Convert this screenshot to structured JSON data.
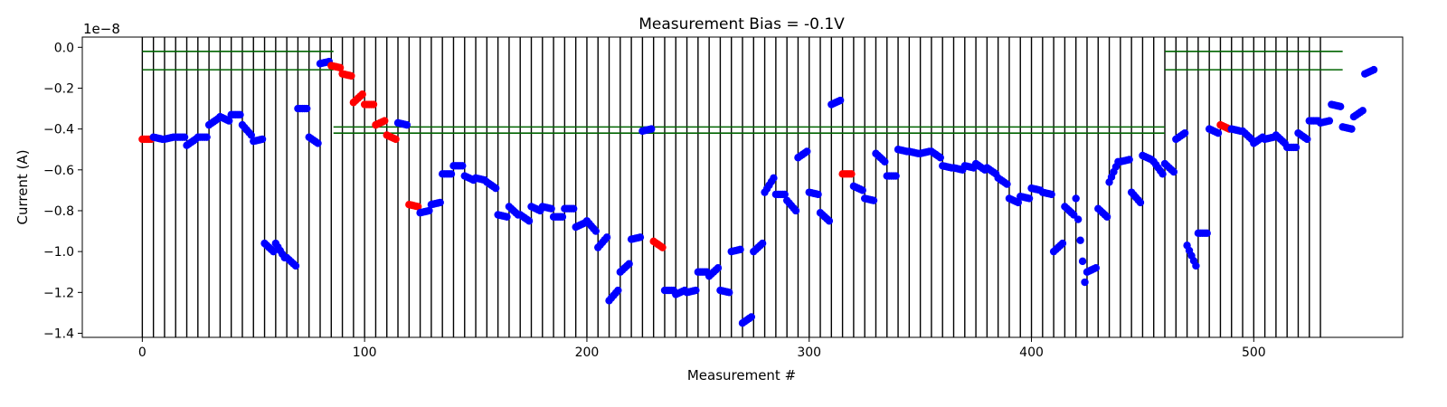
{
  "chart_data": {
    "type": "scatter",
    "title": "Measurement Bias = -0.1V",
    "xlabel": "Measurement #",
    "ylabel": "Current (A)",
    "y_scale_label": "1e−8",
    "xlim": [
      -27,
      567
    ],
    "ylim": [
      -1.42,
      0.05
    ],
    "x_ticks": [
      0,
      100,
      200,
      300,
      400,
      500
    ],
    "x_tick_labels": [
      "0",
      "100",
      "200",
      "300",
      "400",
      "500"
    ],
    "y_ticks": [
      -1.4,
      -1.2,
      -1.0,
      -0.8,
      -0.6,
      -0.4,
      -0.2,
      0.0
    ],
    "y_tick_labels": [
      "−1.4",
      "−1.2",
      "−1.0",
      "−0.8",
      "−0.6",
      "−0.4",
      "−0.2",
      "0.0"
    ],
    "grid": false,
    "colors": {
      "normal": "#0000ff",
      "flagged": "#ff0000",
      "limit_line": "#006400",
      "separator": "#000000"
    },
    "vertical_separators": {
      "color": "black",
      "y_from": -1.42,
      "y_to": 0.05,
      "x": [
        0,
        5,
        10,
        15,
        20,
        25,
        30,
        35,
        40,
        45,
        50,
        55,
        60,
        65,
        70,
        75,
        80,
        85,
        90,
        95,
        100,
        105,
        110,
        115,
        120,
        125,
        130,
        135,
        140,
        145,
        150,
        155,
        160,
        165,
        170,
        175,
        180,
        185,
        190,
        195,
        200,
        205,
        210,
        215,
        220,
        225,
        230,
        235,
        240,
        245,
        250,
        255,
        260,
        265,
        270,
        275,
        280,
        285,
        290,
        295,
        300,
        305,
        310,
        315,
        320,
        325,
        330,
        335,
        340,
        345,
        350,
        355,
        360,
        365,
        370,
        375,
        380,
        385,
        390,
        395,
        400,
        405,
        410,
        415,
        420,
        425,
        430,
        435,
        440,
        445,
        450,
        455,
        460,
        465,
        470,
        475,
        480,
        485,
        490,
        495,
        500,
        505,
        510,
        515,
        520,
        525,
        530
      ]
    },
    "horizontal_lines": [
      {
        "y": -0.02,
        "x_from": 0,
        "x_to": 86
      },
      {
        "y": -0.11,
        "x_from": 0,
        "x_to": 86
      },
      {
        "y": -0.39,
        "x_from": 86,
        "x_to": 460
      },
      {
        "y": -0.42,
        "x_from": 86,
        "x_to": 460
      },
      {
        "y": -0.02,
        "x_from": 460,
        "x_to": 540
      },
      {
        "y": -0.11,
        "x_from": 460,
        "x_to": 540
      }
    ],
    "series": [
      {
        "segments": [
          [
            0,
            -0.45,
            -0.45,
            1
          ],
          [
            5,
            -0.44,
            -0.45,
            0
          ],
          [
            10,
            -0.45,
            -0.44,
            0
          ],
          [
            15,
            -0.44,
            -0.44,
            0
          ],
          [
            20,
            -0.48,
            -0.45,
            0
          ],
          [
            25,
            -0.44,
            -0.44,
            0
          ],
          [
            30,
            -0.38,
            -0.35,
            0
          ],
          [
            35,
            -0.34,
            -0.36,
            0
          ],
          [
            40,
            -0.33,
            -0.33,
            0
          ],
          [
            45,
            -0.38,
            -0.43,
            0
          ],
          [
            50,
            -0.46,
            -0.45,
            0
          ],
          [
            55,
            -0.96,
            -1.0,
            0
          ],
          [
            60,
            -0.96,
            -1.03,
            0
          ],
          [
            65,
            -1.03,
            -1.07,
            0
          ],
          [
            70,
            -0.3,
            -0.3,
            0
          ],
          [
            75,
            -0.44,
            -0.47,
            0
          ],
          [
            80,
            -0.08,
            -0.07,
            0
          ],
          [
            85,
            -0.09,
            -0.1,
            1
          ],
          [
            90,
            -0.13,
            -0.14,
            1
          ],
          [
            95,
            -0.27,
            -0.23,
            1
          ],
          [
            100,
            -0.28,
            -0.28,
            1
          ],
          [
            105,
            -0.38,
            -0.36,
            1
          ],
          [
            110,
            -0.43,
            -0.45,
            1
          ],
          [
            115,
            -0.37,
            -0.38,
            0
          ],
          [
            120,
            -0.77,
            -0.78,
            1
          ],
          [
            125,
            -0.81,
            -0.8,
            0
          ],
          [
            130,
            -0.77,
            -0.76,
            0
          ],
          [
            135,
            -0.62,
            -0.62,
            0
          ],
          [
            140,
            -0.58,
            -0.58,
            0
          ],
          [
            145,
            -0.63,
            -0.65,
            0
          ],
          [
            150,
            -0.64,
            -0.65,
            0
          ],
          [
            155,
            -0.66,
            -0.69,
            0
          ],
          [
            160,
            -0.82,
            -0.83,
            0
          ],
          [
            165,
            -0.78,
            -0.82,
            0
          ],
          [
            170,
            -0.82,
            -0.85,
            0
          ],
          [
            175,
            -0.78,
            -0.8,
            0
          ],
          [
            180,
            -0.78,
            -0.79,
            0
          ],
          [
            185,
            -0.83,
            -0.83,
            0
          ],
          [
            190,
            -0.79,
            -0.79,
            0
          ],
          [
            195,
            -0.88,
            -0.86,
            0
          ],
          [
            200,
            -0.85,
            -0.9,
            0
          ],
          [
            205,
            -0.98,
            -0.93,
            0
          ],
          [
            210,
            -1.24,
            -1.19,
            0
          ],
          [
            215,
            -1.1,
            -1.06,
            0
          ],
          [
            220,
            -0.94,
            -0.93,
            0
          ],
          [
            225,
            -0.41,
            -0.4,
            0
          ],
          [
            230,
            -0.95,
            -0.98,
            1
          ],
          [
            235,
            -1.19,
            -1.19,
            0
          ],
          [
            240,
            -1.21,
            -1.19,
            0
          ],
          [
            245,
            -1.2,
            -1.19,
            0
          ],
          [
            250,
            -1.1,
            -1.1,
            0
          ],
          [
            255,
            -1.12,
            -1.08,
            0
          ],
          [
            260,
            -1.19,
            -1.2,
            0
          ],
          [
            265,
            -1.0,
            -0.99,
            0
          ],
          [
            270,
            -1.35,
            -1.32,
            0
          ],
          [
            275,
            -1.0,
            -0.96,
            0
          ],
          [
            280,
            -0.71,
            -0.64,
            0
          ],
          [
            285,
            -0.72,
            -0.72,
            0
          ],
          [
            290,
            -0.75,
            -0.8,
            0
          ],
          [
            295,
            -0.54,
            -0.51,
            0
          ],
          [
            300,
            -0.71,
            -0.72,
            0
          ],
          [
            305,
            -0.81,
            -0.85,
            0
          ],
          [
            310,
            -0.28,
            -0.26,
            0
          ],
          [
            315,
            -0.62,
            -0.62,
            1
          ],
          [
            320,
            -0.68,
            -0.7,
            0
          ],
          [
            325,
            -0.74,
            -0.75,
            0
          ],
          [
            330,
            -0.52,
            -0.56,
            0
          ],
          [
            335,
            -0.63,
            -0.63,
            0
          ],
          [
            340,
            -0.5,
            -0.51,
            0
          ],
          [
            345,
            -0.51,
            -0.52,
            0
          ],
          [
            350,
            -0.52,
            -0.51,
            0
          ],
          [
            355,
            -0.51,
            -0.54,
            0
          ],
          [
            360,
            -0.58,
            -0.59,
            0
          ],
          [
            365,
            -0.59,
            -0.6,
            0
          ],
          [
            370,
            -0.58,
            -0.59,
            0
          ],
          [
            375,
            -0.57,
            -0.6,
            0
          ],
          [
            380,
            -0.59,
            -0.62,
            0
          ],
          [
            385,
            -0.64,
            -0.67,
            0
          ],
          [
            390,
            -0.74,
            -0.76,
            0
          ],
          [
            395,
            -0.73,
            -0.74,
            0
          ],
          [
            400,
            -0.69,
            -0.7,
            0
          ],
          [
            405,
            -0.71,
            -0.72,
            0
          ],
          [
            410,
            -1.0,
            -0.96,
            0
          ],
          [
            415,
            -0.78,
            -0.82,
            0
          ],
          [
            420,
            -0.74,
            -1.15,
            0
          ],
          [
            425,
            -1.1,
            -1.08,
            0
          ],
          [
            430,
            -0.79,
            -0.83,
            0
          ],
          [
            435,
            -0.66,
            -0.56,
            0
          ],
          [
            440,
            -0.56,
            -0.55,
            0
          ],
          [
            445,
            -0.71,
            -0.76,
            0
          ],
          [
            450,
            -0.53,
            -0.55,
            0
          ],
          [
            455,
            -0.56,
            -0.62,
            0
          ],
          [
            460,
            -0.57,
            -0.61,
            0
          ],
          [
            465,
            -0.45,
            -0.42,
            0
          ],
          [
            470,
            -0.97,
            -1.07,
            0
          ],
          [
            475,
            -0.91,
            -0.91,
            0
          ],
          [
            480,
            -0.4,
            -0.42,
            0
          ],
          [
            485,
            -0.38,
            -0.4,
            1
          ],
          [
            490,
            -0.4,
            -0.41,
            0
          ],
          [
            495,
            -0.41,
            -0.45,
            0
          ],
          [
            500,
            -0.47,
            -0.44,
            0
          ],
          [
            505,
            -0.45,
            -0.44,
            0
          ],
          [
            510,
            -0.43,
            -0.47,
            0
          ],
          [
            515,
            -0.49,
            -0.49,
            0
          ],
          [
            520,
            -0.42,
            -0.45,
            0
          ],
          [
            525,
            -0.36,
            -0.36,
            0
          ],
          [
            530,
            -0.37,
            -0.36,
            0
          ],
          [
            535,
            -0.28,
            -0.29,
            0
          ],
          [
            540,
            -0.39,
            -0.4,
            0
          ],
          [
            545,
            -0.34,
            -0.31,
            0
          ],
          [
            550,
            -0.13,
            -0.11,
            0
          ]
        ]
      }
    ]
  }
}
